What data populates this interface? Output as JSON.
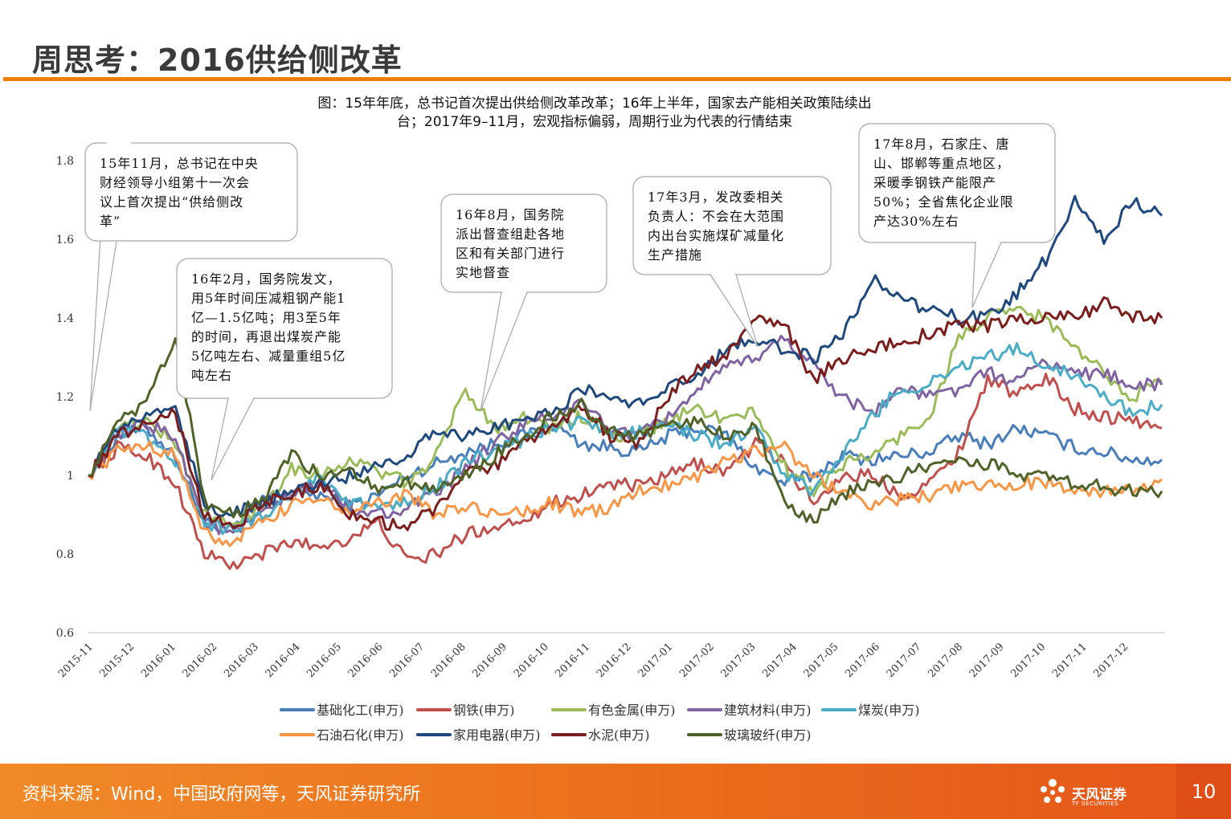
{
  "slide_title": "周思考：2016供给侧改革",
  "page_number": "10",
  "footer": {
    "source": "资料来源：Wind，中国政府网等，天风证券研究所",
    "logo_cn": "天风证券",
    "logo_en": "TF SECURITIES"
  },
  "colors": {
    "accent": "#ef7d00",
    "footer": "#ea6a1b"
  },
  "chart_data": {
    "type": "line",
    "title": "图：15年年底，总书记首次提出供给侧改革改革；16年上半年，国家去产能相关政策陆续出台；2017年9–11月，宏观指标偏弱，周期行业为代表的行情结束",
    "title_lines": [
      "图：15年年底，总书记首次提出供给侧改革改革；16年上半年，国家去产能相关政策陆续出",
      "台；2017年9–11月，宏观指标偏弱，周期行业为代表的行情结束"
    ],
    "ylim": [
      0.6,
      1.8
    ],
    "yticks": [
      "0.6",
      "0.8",
      "1",
      "1.2",
      "1.4",
      "1.6",
      "1.8"
    ],
    "x_labels": [
      "2015-11",
      "2015-12",
      "2016-01",
      "2016-02",
      "2016-03",
      "2016-04",
      "2016-05",
      "2016-06",
      "2016-07",
      "2016-08",
      "2016-09",
      "2016-10",
      "2016-11",
      "2016-12",
      "2017-01",
      "2017-02",
      "2017-03",
      "2017-04",
      "2017-05",
      "2017-06",
      "2017-07",
      "2017-08",
      "2017-09",
      "2017-10",
      "2017-11",
      "2017-12"
    ],
    "legend_position": "bottom",
    "series": [
      {
        "name": "基础化工(申万)",
        "color": "#4a7ebb",
        "values": [
          1.0,
          1.1,
          1.12,
          1.05,
          0.88,
          0.86,
          0.94,
          0.96,
          0.95,
          0.92,
          0.95,
          1.0,
          1.03,
          1.06,
          1.08,
          1.1,
          1.13,
          1.08,
          1.07,
          1.06,
          1.1,
          1.12,
          1.1,
          1.02,
          0.98,
          1.0,
          1.05,
          1.04,
          1.05,
          1.06,
          1.1,
          1.08,
          1.12,
          1.1,
          1.07,
          1.06,
          1.04,
          1.04
        ]
      },
      {
        "name": "钢铁(申万)",
        "color": "#c0504d",
        "values": [
          1.0,
          1.07,
          1.05,
          0.98,
          0.8,
          0.77,
          0.8,
          0.83,
          0.82,
          0.84,
          0.88,
          0.78,
          0.8,
          0.85,
          0.87,
          0.89,
          0.93,
          0.95,
          0.98,
          0.97,
          1.0,
          1.03,
          1.01,
          1.08,
          1.03,
          0.93,
          1.0,
          1.0,
          0.95,
          0.98,
          1.06,
          1.25,
          1.2,
          1.25,
          1.17,
          1.15,
          1.14,
          1.12
        ]
      },
      {
        "name": "有色金属(申万)",
        "color": "#9bbb59",
        "values": [
          1.0,
          1.12,
          1.14,
          1.08,
          0.9,
          0.87,
          0.92,
          1.02,
          1.0,
          1.04,
          1.01,
          0.98,
          1.05,
          1.22,
          1.12,
          1.15,
          1.12,
          1.15,
          1.1,
          1.1,
          1.14,
          1.17,
          1.14,
          1.16,
          1.02,
          0.96,
          1.03,
          1.05,
          1.1,
          1.15,
          1.35,
          1.4,
          1.42,
          1.4,
          1.32,
          1.26,
          1.2,
          1.24
        ]
      },
      {
        "name": "建筑材料(申万)",
        "color": "#8064a2",
        "values": [
          1.0,
          1.1,
          1.13,
          1.1,
          0.88,
          0.85,
          0.9,
          0.95,
          0.98,
          0.92,
          0.9,
          0.92,
          0.95,
          1.02,
          1.08,
          1.13,
          1.15,
          1.18,
          1.12,
          1.1,
          1.15,
          1.22,
          1.27,
          1.3,
          1.35,
          1.28,
          1.2,
          1.16,
          1.22,
          1.2,
          1.22,
          1.26,
          1.24,
          1.29,
          1.26,
          1.26,
          1.23,
          1.23
        ]
      },
      {
        "name": "煤炭(申万)",
        "color": "#4bacc6",
        "values": [
          1.0,
          1.11,
          1.1,
          1.03,
          0.88,
          0.86,
          0.9,
          0.95,
          1.0,
          0.93,
          0.92,
          0.94,
          0.97,
          1.03,
          1.06,
          1.09,
          1.12,
          1.14,
          1.1,
          1.11,
          1.13,
          1.1,
          1.08,
          1.12,
          1.0,
          0.96,
          1.05,
          1.15,
          1.22,
          1.23,
          1.28,
          1.3,
          1.32,
          1.28,
          1.26,
          1.2,
          1.16,
          1.18
        ]
      },
      {
        "name": "石油石化(申万)",
        "color": "#f79646",
        "values": [
          1.0,
          1.06,
          1.08,
          1.05,
          0.85,
          0.83,
          0.88,
          0.92,
          0.95,
          0.9,
          0.93,
          0.95,
          0.9,
          0.92,
          0.9,
          0.91,
          0.93,
          0.9,
          0.92,
          0.96,
          0.98,
          1.0,
          1.04,
          1.06,
          1.07,
          1.0,
          0.95,
          0.93,
          0.94,
          0.95,
          0.97,
          0.97,
          0.98,
          0.98,
          0.97,
          0.96,
          0.96,
          0.99
        ]
      },
      {
        "name": "家用电器(申万)",
        "color": "#1f497d",
        "values": [
          1.0,
          1.12,
          1.15,
          1.18,
          0.92,
          0.9,
          0.93,
          0.96,
          0.98,
          1.0,
          1.03,
          1.05,
          1.12,
          1.1,
          1.12,
          1.14,
          1.16,
          1.22,
          1.2,
          1.18,
          1.23,
          1.25,
          1.32,
          1.35,
          1.32,
          1.3,
          1.35,
          1.5,
          1.45,
          1.42,
          1.4,
          1.4,
          1.46,
          1.55,
          1.7,
          1.6,
          1.7,
          1.66
        ]
      },
      {
        "name": "水泥(申万)",
        "color": "#7b1e1e",
        "values": [
          1.0,
          1.1,
          1.14,
          1.16,
          0.9,
          0.87,
          0.93,
          0.95,
          0.98,
          0.9,
          0.88,
          0.87,
          0.92,
          1.0,
          1.02,
          1.08,
          1.12,
          1.18,
          1.1,
          1.08,
          1.2,
          1.28,
          1.3,
          1.4,
          1.38,
          1.24,
          1.3,
          1.32,
          1.34,
          1.36,
          1.38,
          1.38,
          1.4,
          1.4,
          1.4,
          1.44,
          1.4,
          1.4
        ]
      },
      {
        "name": "玻璃玻纤(申万)",
        "color": "#4f6228",
        "values": [
          1.0,
          1.13,
          1.18,
          1.35,
          0.93,
          0.9,
          0.94,
          1.05,
          1.0,
          1.02,
          0.96,
          0.98,
          0.97,
          1.0,
          1.05,
          1.1,
          1.15,
          1.18,
          1.11,
          1.1,
          1.12,
          1.14,
          1.1,
          1.12,
          0.92,
          0.88,
          0.95,
          0.98,
          1.0,
          1.02,
          1.04,
          1.03,
          1.0,
          1.0,
          0.98,
          0.97,
          0.96,
          0.96
        ]
      }
    ],
    "annotations": [
      {
        "id": "a1",
        "lines": [
          "15年11月，总书记在中央",
          "财经领导小组第十一次会",
          "议上首次提出“供给侧改",
          "革”"
        ],
        "x_index": 0,
        "y_value": 1.11
      },
      {
        "id": "a2",
        "lines": [
          "16年2月，国务院发文，",
          "用5年时间压减粗钢产能1",
          "亿—1.5亿吨；用3至5年",
          "的时间，再退出煤炭产能",
          "5亿吨左右、减量重组5亿",
          "吨左右"
        ],
        "x_index": 3.0,
        "y_value": 0.99
      },
      {
        "id": "a3",
        "lines": [
          "16年8月，国务院",
          "派出督查组赴各地",
          "区和有关部门进行",
          "实地督查"
        ],
        "x_index": 9.4,
        "y_value": 1.16
      },
      {
        "id": "a4",
        "lines": [
          "17年3月，发改委相关",
          "负责人：不会在大范围",
          "内出台实施煤矿减量化",
          "生产措施"
        ],
        "x_index": 16.0,
        "y_value": 1.31
      },
      {
        "id": "a5",
        "lines": [
          "17年8月，石家庄、唐",
          "山、邯郸等重点地区，",
          "采暖季钢铁产能限产",
          "50%；全省焦化企业限",
          "产达30%左右"
        ],
        "x_index": 21.7,
        "y_value": 1.42
      }
    ]
  }
}
